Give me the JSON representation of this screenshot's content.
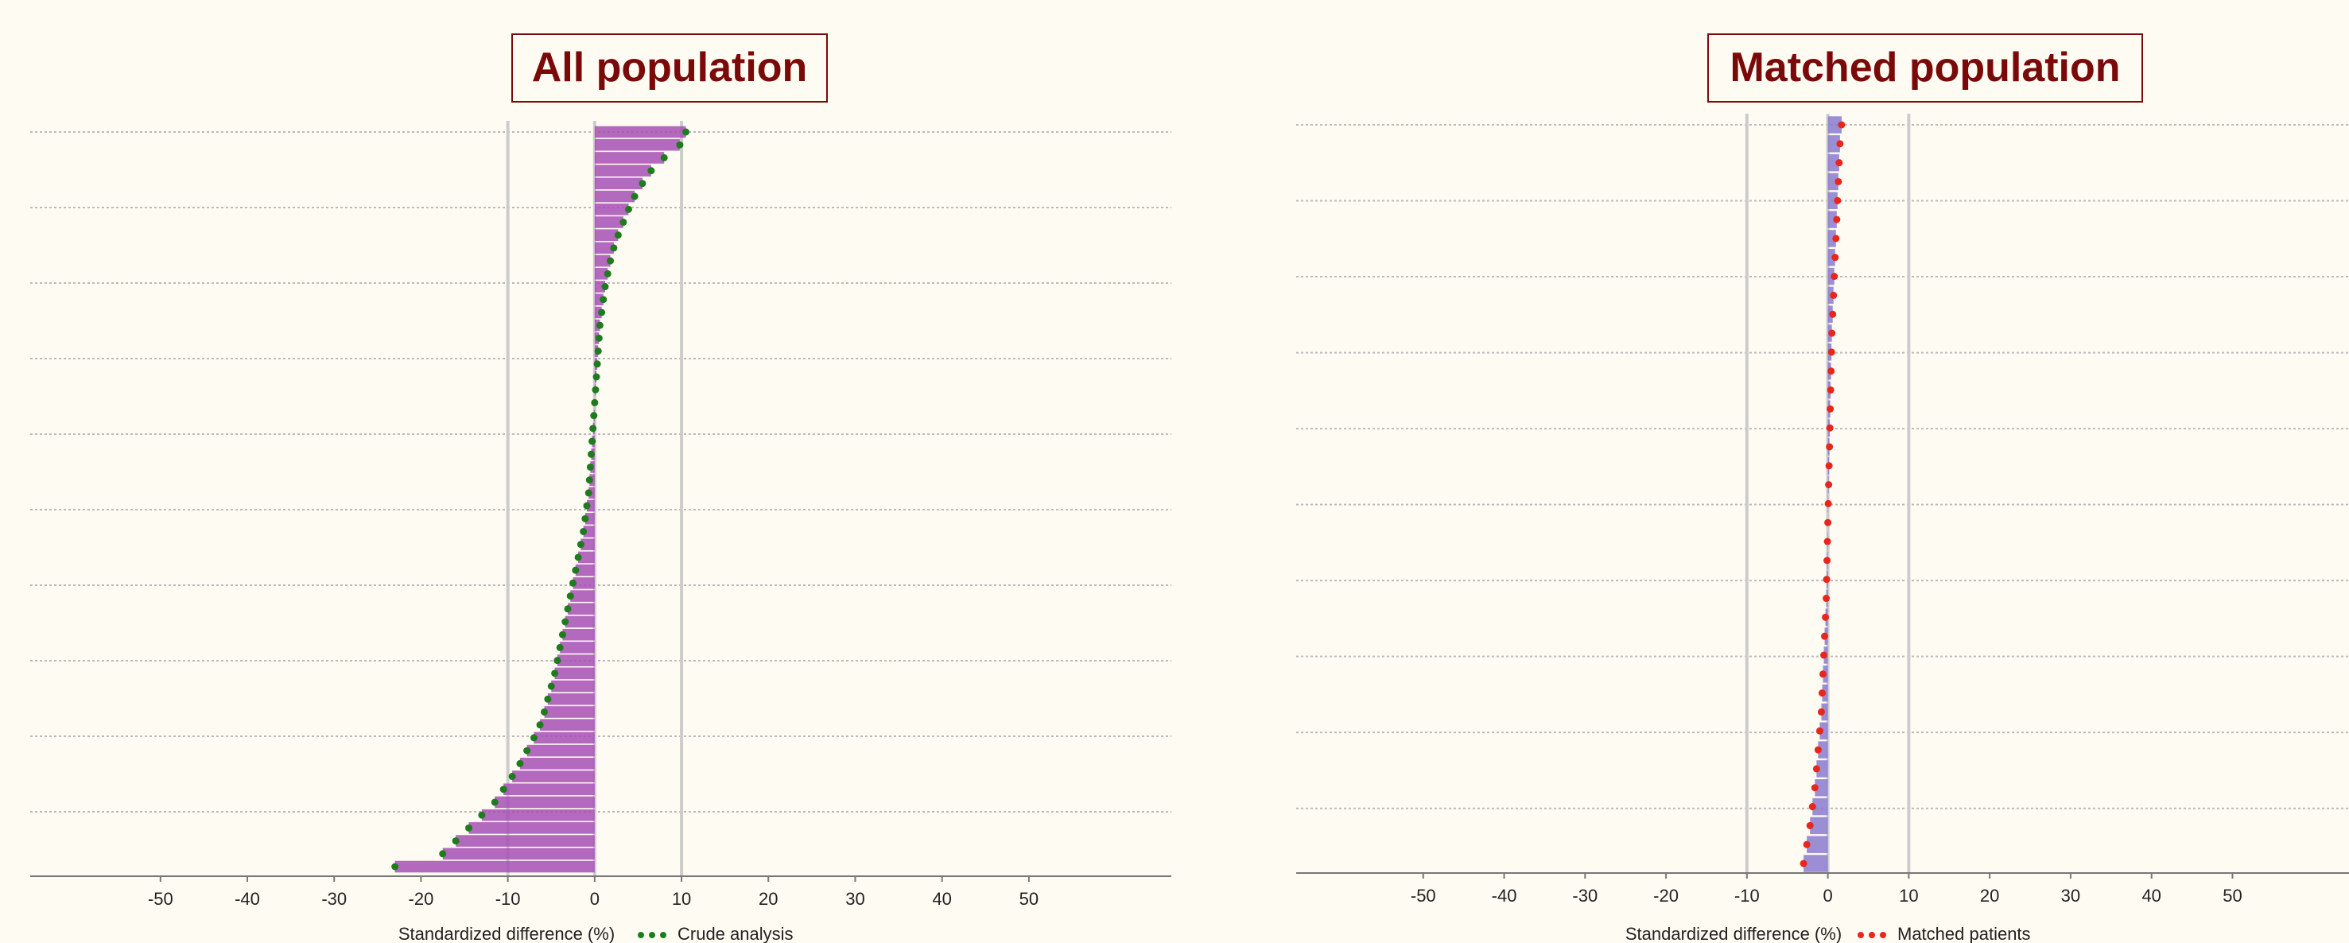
{
  "chart_data": [
    {
      "type": "bar",
      "orientation": "horizontal",
      "title": "All population",
      "x_label": "Standardized difference (%)",
      "xlim": [
        -65,
        66.4
      ],
      "xticks": [
        -50,
        -40,
        -30,
        -20,
        -10,
        0,
        10,
        20,
        30,
        40,
        50
      ],
      "reference_lines": [
        -10,
        0,
        10
      ],
      "grid": true,
      "bar_color": "#a64fb5",
      "series": [
        {
          "name": "Crude analysis",
          "color": "#1e7b1e",
          "values": [
            10.5,
            9.8,
            8.0,
            6.5,
            5.5,
            4.6,
            3.9,
            3.3,
            2.7,
            2.2,
            1.8,
            1.5,
            1.2,
            1.0,
            0.8,
            0.6,
            0.5,
            0.4,
            0.3,
            0.2,
            0.1,
            0.0,
            -0.1,
            -0.2,
            -0.3,
            -0.4,
            -0.5,
            -0.6,
            -0.7,
            -0.9,
            -1.1,
            -1.3,
            -1.6,
            -1.9,
            -2.2,
            -2.5,
            -2.8,
            -3.1,
            -3.4,
            -3.7,
            -4.0,
            -4.3,
            -4.6,
            -5.0,
            -5.4,
            -5.8,
            -6.3,
            -7.0,
            -7.8,
            -8.6,
            -9.5,
            -10.5,
            -11.5,
            -13.0,
            -14.5,
            -16.0,
            -17.5,
            -23.0
          ]
        }
      ]
    },
    {
      "type": "bar",
      "orientation": "horizontal",
      "title": "Matched population",
      "x_label": "Standardized difference (%)",
      "xlim": [
        -65.7,
        64.4
      ],
      "xticks": [
        -50,
        -40,
        -30,
        -20,
        -10,
        0,
        10,
        20,
        30,
        40,
        50
      ],
      "reference_lines": [
        -10,
        0,
        10
      ],
      "grid": true,
      "bar_color": "#8a7ad0",
      "series": [
        {
          "name": "Matched patients",
          "color": "#e8261c",
          "values": [
            1.7,
            1.5,
            1.4,
            1.3,
            1.2,
            1.1,
            1.0,
            0.9,
            0.8,
            0.7,
            0.6,
            0.5,
            0.45,
            0.4,
            0.35,
            0.3,
            0.25,
            0.2,
            0.15,
            0.1,
            0.05,
            0,
            -0.05,
            -0.1,
            -0.15,
            -0.2,
            -0.3,
            -0.4,
            -0.5,
            -0.6,
            -0.7,
            -0.8,
            -1.0,
            -1.2,
            -1.4,
            -1.6,
            -1.9,
            -2.2,
            -2.6,
            -3.0
          ]
        }
      ]
    }
  ]
}
